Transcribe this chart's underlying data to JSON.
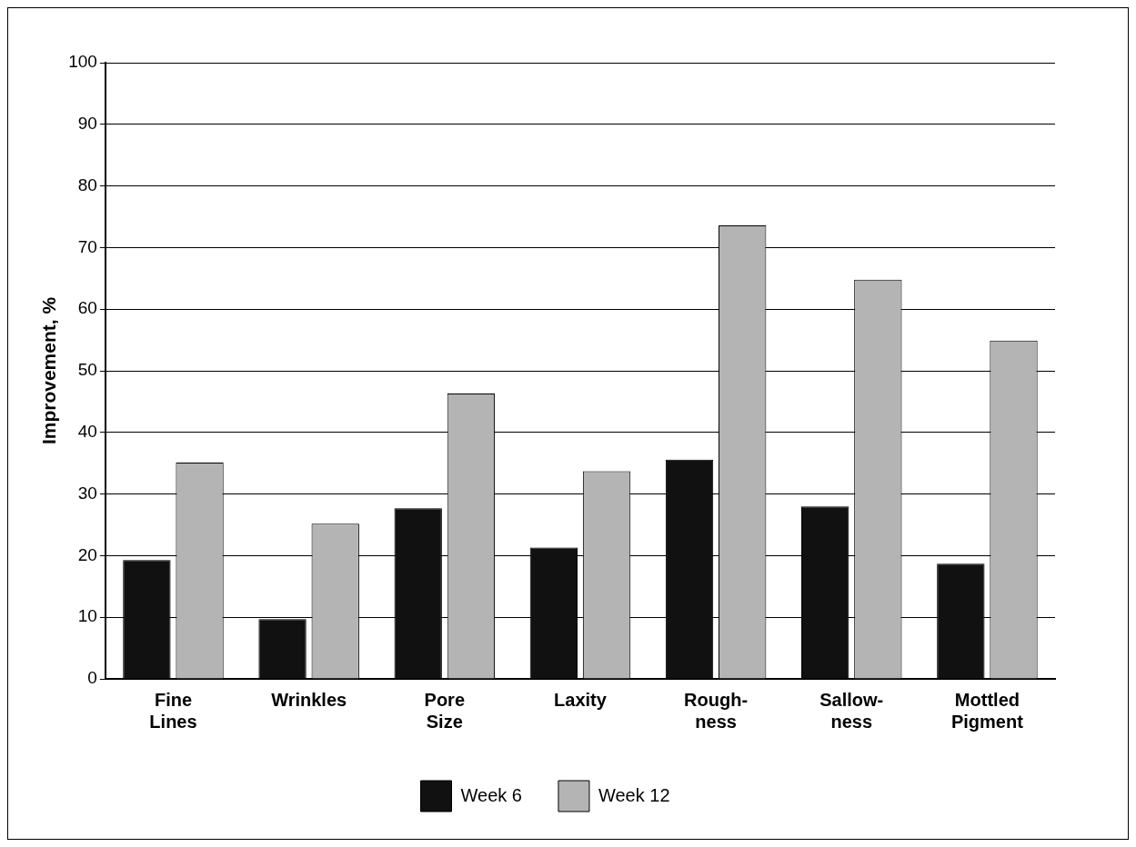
{
  "chart_data": {
    "type": "bar",
    "ylabel": "Improvement, %",
    "categories": [
      "Fine\nLines",
      "Wrinkles",
      "Pore\nSize",
      "Laxity",
      "Rough-\nness",
      "Sallow-\nness",
      "Mottled\nPigment"
    ],
    "series": [
      {
        "name": "Week 6",
        "color": "#111111",
        "values": [
          19.3,
          9.7,
          27.7,
          21.3,
          35.6,
          28,
          18.7
        ]
      },
      {
        "name": "Week 12",
        "color": "#b4b4b4",
        "values": [
          35.1,
          25.2,
          46.3,
          33.7,
          73.6,
          64.8,
          54.9
        ]
      }
    ],
    "ylim": [
      0,
      100
    ],
    "yticks": [
      0,
      10,
      20,
      30,
      40,
      50,
      60,
      70,
      80,
      90,
      100
    ],
    "grid": "y",
    "legend": "bottom"
  }
}
